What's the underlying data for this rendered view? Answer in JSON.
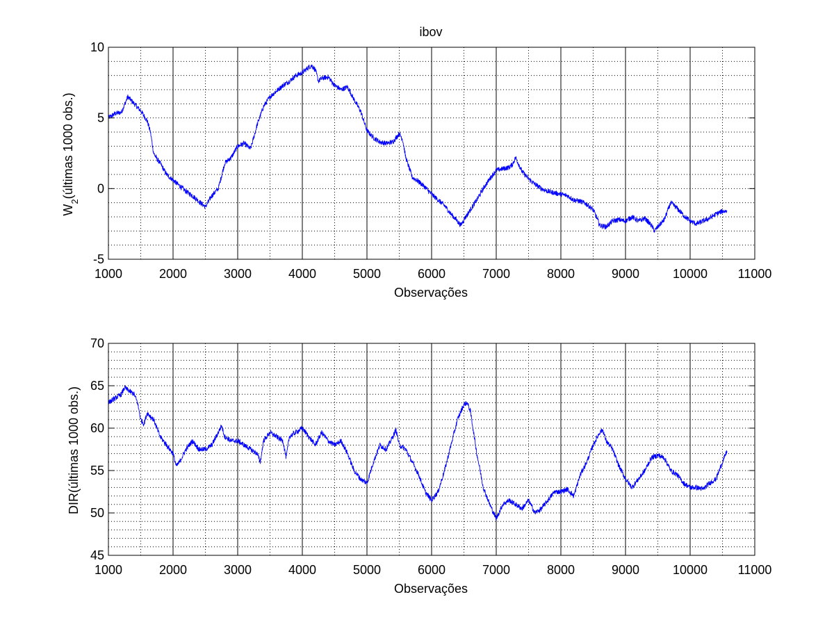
{
  "figure": {
    "title": "ibov"
  },
  "chart_data": [
    {
      "type": "line",
      "title": "ibov",
      "xlabel": "Observações",
      "ylabel_main": "W",
      "ylabel_sub": "2",
      "ylabel_rest": "(últimas 1000 obs.)",
      "xlim": [
        1000,
        11000
      ],
      "ylim": [
        -5,
        10
      ],
      "xticks": [
        1000,
        2000,
        3000,
        4000,
        5000,
        6000,
        7000,
        8000,
        9000,
        10000,
        11000
      ],
      "xtick_labels": [
        "1000",
        "2000",
        "3000",
        "4000",
        "5000",
        "6000",
        "7000",
        "8000",
        "9000",
        "10000",
        "11000"
      ],
      "yticks": [
        -5,
        0,
        5,
        10
      ],
      "ytick_labels": [
        "-5",
        "0",
        "5",
        "10"
      ],
      "grid": "dotted",
      "line_color": "#0000ff",
      "series": [
        {
          "x": [
            1000,
            1100,
            1200,
            1300,
            1400,
            1500,
            1600,
            1650,
            1700,
            1750,
            1800,
            1900,
            2000,
            2100,
            2200,
            2300,
            2400,
            2500,
            2600,
            2700,
            2800,
            2900,
            3000,
            3100,
            3200,
            3300,
            3400,
            3500,
            3600,
            3700,
            3800,
            3900,
            4000,
            4100,
            4150,
            4200,
            4250,
            4300,
            4400,
            4500,
            4600,
            4700,
            4800,
            4900,
            5000,
            5100,
            5200,
            5300,
            5400,
            5500,
            5550,
            5600,
            5700,
            5800,
            5900,
            6000,
            6100,
            6200,
            6300,
            6400,
            6450,
            6500,
            6600,
            6700,
            6800,
            6900,
            7000,
            7100,
            7200,
            7250,
            7300,
            7400,
            7500,
            7600,
            7700,
            7800,
            7900,
            8000,
            8100,
            8200,
            8300,
            8400,
            8500,
            8550,
            8600,
            8700,
            8800,
            8900,
            9000,
            9100,
            9200,
            9300,
            9400,
            9450,
            9500,
            9600,
            9700,
            9800,
            9900,
            10000,
            10100,
            10200,
            10300,
            10400,
            10500,
            10570
          ],
          "y": [
            5.0,
            5.3,
            5.4,
            6.5,
            6.0,
            5.5,
            4.8,
            4.0,
            2.5,
            2.1,
            1.8,
            1.0,
            0.6,
            0.2,
            -0.2,
            -0.5,
            -0.9,
            -1.3,
            -0.5,
            0.0,
            1.8,
            2.2,
            3.0,
            3.2,
            2.8,
            4.5,
            5.8,
            6.5,
            6.9,
            7.3,
            7.6,
            8.0,
            8.2,
            8.6,
            8.7,
            8.4,
            7.6,
            7.8,
            7.9,
            7.3,
            7.0,
            7.2,
            6.3,
            5.5,
            4.1,
            3.6,
            3.3,
            3.2,
            3.3,
            3.9,
            3.5,
            2.2,
            0.8,
            0.5,
            0.1,
            -0.4,
            -0.8,
            -1.2,
            -1.8,
            -2.3,
            -2.6,
            -2.2,
            -1.5,
            -0.8,
            0.0,
            0.7,
            1.3,
            1.4,
            1.5,
            1.7,
            2.2,
            1.2,
            0.7,
            0.3,
            0.0,
            -0.2,
            -0.3,
            -0.4,
            -0.5,
            -0.8,
            -0.9,
            -1.1,
            -1.5,
            -2.0,
            -2.6,
            -2.7,
            -2.3,
            -2.2,
            -2.3,
            -2.0,
            -2.3,
            -2.1,
            -2.6,
            -3.0,
            -2.7,
            -2.2,
            -1.0,
            -1.4,
            -1.9,
            -2.3,
            -2.5,
            -2.3,
            -2.1,
            -1.8,
            -1.6,
            -1.6
          ]
        }
      ]
    },
    {
      "type": "line",
      "title": "",
      "xlabel": "Observações",
      "ylabel": "DIR(últimas 1000 obs.)",
      "xlim": [
        1000,
        11000
      ],
      "ylim": [
        45,
        70
      ],
      "xticks": [
        1000,
        2000,
        3000,
        4000,
        5000,
        6000,
        7000,
        8000,
        9000,
        10000,
        11000
      ],
      "xtick_labels": [
        "1000",
        "2000",
        "3000",
        "4000",
        "5000",
        "6000",
        "7000",
        "8000",
        "9000",
        "10000",
        "11000"
      ],
      "yticks": [
        45,
        50,
        55,
        60,
        65,
        70
      ],
      "ytick_labels": [
        "45",
        "50",
        "55",
        "60",
        "65",
        "70"
      ],
      "grid": "dotted",
      "line_color": "#0000ff",
      "series": [
        {
          "x": [
            1000,
            1100,
            1200,
            1250,
            1300,
            1400,
            1450,
            1500,
            1550,
            1600,
            1700,
            1800,
            1900,
            2000,
            2050,
            2100,
            2200,
            2300,
            2400,
            2500,
            2600,
            2700,
            2750,
            2800,
            2900,
            3000,
            3100,
            3200,
            3300,
            3350,
            3400,
            3500,
            3600,
            3700,
            3750,
            3800,
            3900,
            4000,
            4100,
            4200,
            4300,
            4400,
            4500,
            4600,
            4700,
            4800,
            4900,
            5000,
            5100,
            5200,
            5300,
            5400,
            5450,
            5500,
            5600,
            5700,
            5800,
            5900,
            6000,
            6100,
            6200,
            6300,
            6400,
            6500,
            6550,
            6600,
            6700,
            6800,
            6900,
            7000,
            7100,
            7200,
            7300,
            7400,
            7500,
            7600,
            7700,
            7800,
            7900,
            8000,
            8100,
            8200,
            8300,
            8400,
            8500,
            8600,
            8650,
            8700,
            8800,
            8900,
            9000,
            9100,
            9200,
            9300,
            9400,
            9500,
            9600,
            9700,
            9800,
            9900,
            10000,
            10100,
            10200,
            10300,
            10400,
            10500,
            10570
          ],
          "y": [
            63.0,
            63.5,
            64.0,
            64.8,
            64.5,
            64.0,
            63.0,
            61.0,
            60.5,
            61.8,
            61.0,
            59.0,
            58.0,
            57.0,
            55.5,
            56.0,
            57.5,
            58.5,
            57.5,
            57.5,
            58.0,
            59.5,
            60.3,
            59.0,
            58.5,
            58.5,
            58.0,
            57.5,
            57.0,
            56.0,
            58.5,
            59.5,
            59.0,
            58.5,
            56.5,
            59.0,
            59.5,
            60.0,
            59.0,
            58.0,
            59.5,
            58.5,
            58.0,
            58.5,
            57.0,
            55.0,
            54.0,
            53.5,
            56.0,
            58.0,
            57.5,
            59.0,
            59.8,
            58.0,
            57.5,
            56.0,
            54.5,
            52.5,
            51.5,
            52.5,
            55.0,
            58.0,
            61.0,
            62.8,
            63.0,
            62.0,
            57.0,
            53.0,
            51.0,
            49.3,
            51.0,
            51.5,
            51.0,
            50.5,
            51.5,
            50.0,
            50.5,
            51.5,
            52.5,
            52.5,
            52.8,
            52.0,
            54.5,
            56.0,
            58.0,
            59.5,
            59.8,
            58.5,
            57.5,
            55.5,
            54.0,
            53.0,
            54.0,
            55.0,
            56.5,
            56.8,
            56.5,
            55.0,
            54.5,
            53.5,
            53.0,
            53.0,
            52.8,
            53.5,
            54.0,
            56.0,
            57.3
          ]
        }
      ]
    }
  ]
}
